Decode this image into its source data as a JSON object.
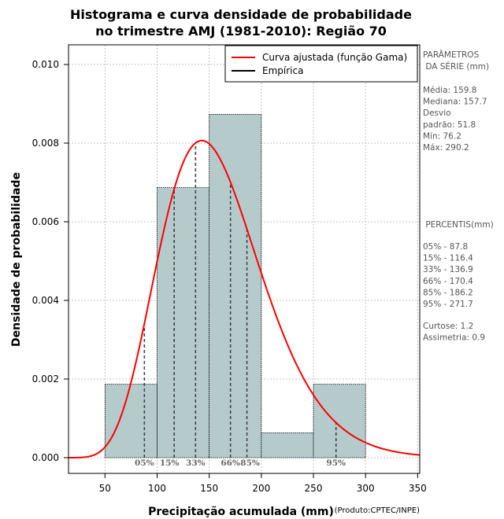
{
  "chart_data": {
    "type": "bar",
    "title": [
      "Histograma e curva densidade de probabilidade",
      "no trimestre AMJ (1981-2010): Região 70"
    ],
    "xlabel": "Precipitação acumulada (mm)",
    "ylabel": "Densidade de probabilidade",
    "credit": "(Produto:CPTEC/INPE)",
    "xlim": [
      15,
      352
    ],
    "ylim": [
      -0.0004,
      0.0105
    ],
    "xticks": [
      50,
      100,
      150,
      200,
      250,
      300,
      350
    ],
    "yticks": [
      0.0,
      0.002,
      0.004,
      0.006,
      0.008,
      0.01
    ],
    "ytick_labels": [
      "0.000",
      "0.002",
      "0.004",
      "0.006",
      "0.008",
      "0.010"
    ],
    "grid": true,
    "legend_placement": "top-right",
    "bins": [
      {
        "x0": 50,
        "x1": 100,
        "density": 0.001867
      },
      {
        "x0": 100,
        "x1": 150,
        "density": 0.006867
      },
      {
        "x0": 150,
        "x1": 200,
        "density": 0.008733
      },
      {
        "x0": 200,
        "x1": 250,
        "density": 0.000633
      },
      {
        "x0": 250,
        "x1": 300,
        "density": 0.001867
      }
    ],
    "series": [
      {
        "name": "Curva ajustada (função Gama)",
        "color": "#ff0000",
        "kind": "line",
        "gamma_shape": 9.5,
        "gamma_scale": 16.8
      },
      {
        "name": "Empírica",
        "color": "#000000",
        "kind": "histogram"
      }
    ],
    "bar_fill": "#b5cbcb",
    "percentile_markers": [
      {
        "label": "05%",
        "x": 87.8
      },
      {
        "label": "15%",
        "x": 116.4
      },
      {
        "label": "33%",
        "x": 136.9
      },
      {
        "label": "66%",
        "x": 170.4
      },
      {
        "label": "85%",
        "x": 186.2
      },
      {
        "label": "95%",
        "x": 271.7
      }
    ],
    "side_panel": {
      "params_title": [
        "PARÂMETROS",
        " DA SÉRIE (mm)"
      ],
      "params": [
        "Média:  159.8",
        "Mediana:  157.7",
        "Desvio",
        "padrão:  51.8",
        "Mín:  76.2",
        "Máx:  290.2"
      ],
      "percentis_title": " PERCENTIS(mm)",
      "percentis": [
        "05% -   87.8",
        "15% -   116.4",
        "33% -   136.9",
        "66% -   170.4",
        "85% -   186.2",
        "95% -   271.7"
      ],
      "stats": [
        "Curtose:  1.2",
        "Assimetria:  0.9"
      ]
    }
  }
}
